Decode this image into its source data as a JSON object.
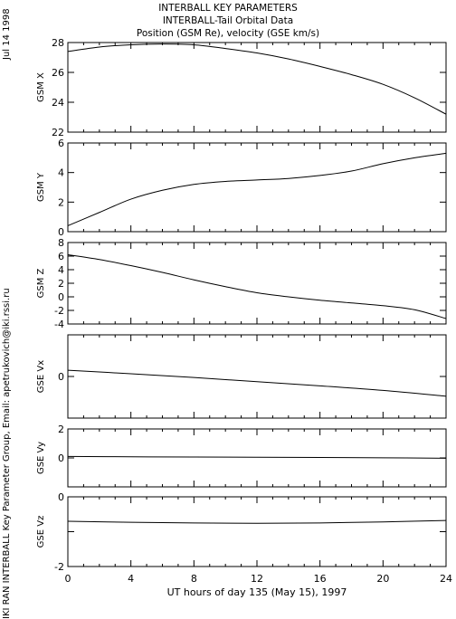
{
  "header": {
    "title": "INTERBALL KEY PARAMETERS",
    "subtitle": "INTERBALL-Tail Orbital Data",
    "subtitle2": "Position (GSM Re), velocity (GSE km/s)"
  },
  "side": {
    "date": "Jul 14 1998",
    "credit": "IKI RAN INTERBALL Key Parameter Group, Email: apetrukovich@iki.rssi.ru"
  },
  "chart_data": {
    "type": "line",
    "x_label": "UT hours of day 135 (May 15), 1997",
    "xlim": [
      0,
      24
    ],
    "x_ticks": [
      0,
      4,
      8,
      12,
      16,
      20,
      24
    ],
    "x_tick_labels": [
      "0",
      "4",
      "8",
      "12",
      "16",
      "20",
      "24"
    ],
    "panels": [
      {
        "ylabel": "GSM X",
        "ylim": [
          22,
          28
        ],
        "y_ticks": [
          22,
          24,
          26,
          28
        ],
        "y_tick_labels": [
          "22",
          "24",
          "26",
          "28"
        ],
        "x": [
          0,
          2,
          4,
          6,
          8,
          10,
          12,
          14,
          16,
          18,
          20,
          22,
          24
        ],
        "y": [
          27.4,
          27.7,
          27.85,
          27.9,
          27.85,
          27.6,
          27.3,
          26.9,
          26.4,
          25.85,
          25.2,
          24.3,
          23.2
        ]
      },
      {
        "ylabel": "GSM Y",
        "ylim": [
          0,
          6
        ],
        "y_ticks": [
          0,
          2,
          4,
          6
        ],
        "y_tick_labels": [
          "0",
          "2",
          "4",
          "6"
        ],
        "x": [
          0,
          2,
          4,
          6,
          8,
          10,
          12,
          14,
          16,
          18,
          20,
          22,
          24
        ],
        "y": [
          0.4,
          1.3,
          2.2,
          2.8,
          3.2,
          3.4,
          3.5,
          3.6,
          3.8,
          4.1,
          4.6,
          5.0,
          5.3
        ]
      },
      {
        "ylabel": "GSM Z",
        "ylim": [
          -4,
          8
        ],
        "y_ticks": [
          -4,
          -2,
          0,
          2,
          4,
          6,
          8
        ],
        "y_tick_labels": [
          "-4",
          "-2",
          "0",
          "2",
          "4",
          "6",
          "8"
        ],
        "x": [
          0,
          2,
          4,
          6,
          8,
          10,
          12,
          14,
          16,
          18,
          20,
          22,
          24
        ],
        "y": [
          6.2,
          5.5,
          4.6,
          3.6,
          2.5,
          1.5,
          0.6,
          0.0,
          -0.5,
          -0.9,
          -1.3,
          -1.9,
          -3.2
        ]
      },
      {
        "ylabel": "GSE Vx",
        "ylim": [
          -2,
          2
        ],
        "y_ticks": [
          -2,
          0,
          2
        ],
        "y_tick_labels": [
          "",
          "0",
          ""
        ],
        "x": [
          0,
          4,
          8,
          12,
          16,
          20,
          24
        ],
        "y": [
          0.3,
          0.13,
          -0.05,
          -0.25,
          -0.45,
          -0.67,
          -0.95
        ]
      },
      {
        "ylabel": "GSE Vy",
        "ylim": [
          -2,
          2
        ],
        "y_ticks": [
          -2,
          0,
          2
        ],
        "y_tick_labels": [
          "",
          "0",
          "2"
        ],
        "x": [
          0,
          4,
          8,
          12,
          16,
          20,
          24
        ],
        "y": [
          0.1,
          0.08,
          0.06,
          0.05,
          0.03,
          0.01,
          -0.02
        ]
      },
      {
        "ylabel": "GSE Vz",
        "ylim": [
          -2,
          0
        ],
        "y_ticks": [
          -2,
          -1,
          0
        ],
        "y_tick_labels": [
          "-2",
          "",
          "0"
        ],
        "x": [
          0,
          4,
          8,
          12,
          16,
          20,
          24
        ],
        "y": [
          -0.7,
          -0.73,
          -0.75,
          -0.76,
          -0.75,
          -0.72,
          -0.68
        ]
      }
    ]
  }
}
